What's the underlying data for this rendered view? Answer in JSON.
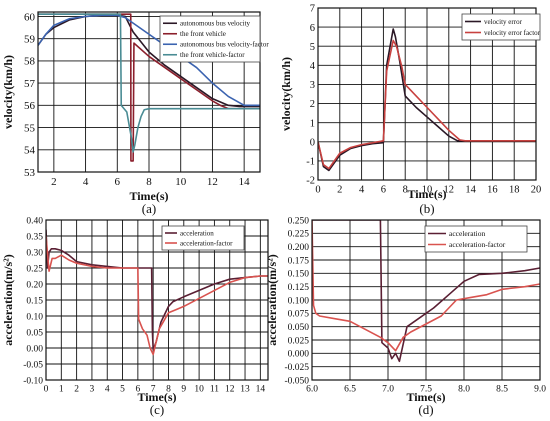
{
  "chart_data": [
    {
      "panel_label": "(a)",
      "type": "line",
      "xlabel": "Time(s)",
      "ylabel": "velocity(km/h)",
      "xlim": [
        1,
        15
      ],
      "ylim": [
        53,
        60.2
      ],
      "xticks": [
        2,
        4,
        6,
        8,
        10,
        12,
        14
      ],
      "xtick_labels": [
        "2",
        "4",
        "6",
        "8",
        "10",
        "12",
        "14"
      ],
      "yticks": [
        53,
        54,
        55,
        56,
        57,
        58,
        59,
        60
      ],
      "ytick_labels": [
        "53",
        "54",
        "55",
        "56",
        "57",
        "58",
        "59",
        "60"
      ],
      "grid": true,
      "legend": "top-right",
      "series": [
        {
          "name": "autonomous bus velocity",
          "color": "#2b1826",
          "x": [
            1,
            1.5,
            2,
            3,
            4,
            5,
            6,
            6.5,
            7,
            8,
            9,
            10,
            11,
            12,
            13,
            13.7,
            14.2,
            15
          ],
          "y": [
            58.7,
            59.2,
            59.5,
            59.85,
            60.0,
            60.05,
            60.05,
            60.0,
            59.3,
            58.4,
            57.8,
            57.3,
            56.8,
            56.3,
            56.0,
            55.95,
            55.95,
            55.95
          ]
        },
        {
          "name": "the front vehicle",
          "color": "#8b1f2c",
          "x": [
            1,
            6.85,
            6.86,
            7.0,
            7.05,
            8.0,
            9,
            10,
            11,
            12,
            12.5,
            13.0,
            13.5,
            14,
            15
          ],
          "y": [
            60.1,
            60.1,
            53.5,
            53.5,
            58.8,
            58.2,
            57.7,
            57.2,
            56.7,
            56.2,
            56.0,
            55.85,
            55.85,
            55.85,
            55.85
          ]
        },
        {
          "name": "autonomous bus velocity-factor",
          "color": "#3b63b0",
          "x": [
            1,
            1.5,
            2,
            3,
            4,
            5,
            6,
            6.5,
            7,
            8,
            9,
            10,
            11,
            12,
            13,
            14,
            15
          ],
          "y": [
            58.7,
            59.2,
            59.6,
            59.9,
            60.0,
            60.05,
            60.05,
            59.95,
            59.7,
            59.2,
            58.7,
            58.2,
            57.7,
            57.0,
            56.4,
            56.0,
            56.0
          ]
        },
        {
          "name": "the front vehicle-factor",
          "color": "#4a8c94",
          "x": [
            1,
            6.2,
            6.25,
            6.6,
            6.9,
            7.0,
            7.1,
            7.3,
            7.5,
            7.7,
            8.0,
            9,
            10,
            12,
            15
          ],
          "y": [
            60.1,
            60.1,
            56.0,
            55.7,
            54.5,
            53.9,
            54.2,
            55.0,
            55.5,
            55.8,
            55.85,
            55.85,
            55.85,
            55.85,
            55.85
          ]
        }
      ]
    },
    {
      "panel_label": "(b)",
      "type": "line",
      "xlabel": "Time(s)",
      "ylabel": "velocity(km/h)",
      "xlim": [
        0,
        20
      ],
      "ylim": [
        -2,
        7
      ],
      "xticks": [
        0,
        2,
        4,
        6,
        8,
        10,
        12,
        14,
        16,
        18,
        20
      ],
      "xtick_labels": [
        "0",
        "2",
        "4",
        "6",
        "8",
        "10",
        "12",
        "14",
        "16",
        "18",
        "20"
      ],
      "yticks": [
        -2,
        -1,
        0,
        1,
        2,
        3,
        4,
        5,
        6,
        7
      ],
      "ytick_labels": [
        "-2",
        "-1",
        "0",
        "1",
        "2",
        "3",
        "4",
        "5",
        "6",
        "7"
      ],
      "grid": true,
      "legend": "top-right",
      "series": [
        {
          "name": "velocity error",
          "color": "#2b1826",
          "x": [
            0,
            0.5,
            1,
            1.5,
            2,
            3,
            4,
            5,
            6,
            6.3,
            6.9,
            7.1,
            7.5,
            8,
            9,
            10,
            11,
            12,
            12.8,
            13.5,
            15,
            20
          ],
          "y": [
            0,
            -1.3,
            -1.5,
            -1.1,
            -0.7,
            -0.35,
            -0.2,
            -0.1,
            -0.05,
            4.0,
            5.9,
            5.5,
            4.2,
            2.4,
            1.8,
            1.3,
            0.8,
            0.3,
            0.05,
            0.05,
            0.05,
            0.05
          ]
        },
        {
          "name": "velocity error factor",
          "color": "#c8413f",
          "x": [
            0,
            0.5,
            1,
            1.5,
            2,
            3,
            4,
            5,
            6,
            6.3,
            6.9,
            7.2,
            7.7,
            8,
            9,
            10,
            11,
            12,
            13,
            13.5,
            15,
            20
          ],
          "y": [
            0,
            -1.2,
            -1.4,
            -1.0,
            -0.6,
            -0.3,
            -0.15,
            -0.05,
            0.05,
            3.7,
            5.3,
            5.0,
            3.9,
            3.0,
            2.4,
            1.8,
            1.2,
            0.6,
            0.1,
            0.05,
            0.05,
            0.05
          ]
        }
      ]
    },
    {
      "panel_label": "(c)",
      "type": "line",
      "xlabel": "Time(s)",
      "ylabel": "acceleration(m/s²)",
      "xlim": [
        0,
        14.5
      ],
      "ylim": [
        -0.1,
        0.4
      ],
      "xticks": [
        0,
        1,
        2,
        3,
        4,
        5,
        6,
        7,
        8,
        9,
        10,
        11,
        12,
        13,
        14
      ],
      "xtick_labels": [
        "0",
        "1",
        "2",
        "3",
        "4",
        "5",
        "6",
        "7",
        "8",
        "9",
        "10",
        "11",
        "12",
        "13",
        "14"
      ],
      "yticks": [
        -0.1,
        -0.05,
        0.0,
        0.05,
        0.1,
        0.15,
        0.2,
        0.25,
        0.3,
        0.35,
        0.4
      ],
      "ytick_labels": [
        "-0.10",
        "-0.05",
        "0.00",
        "0.05",
        "0.10",
        "0.15",
        "0.20",
        "0.25",
        "0.30",
        "0.35",
        "0.40"
      ],
      "grid": true,
      "legend": "top-right",
      "series": [
        {
          "name": "acceleration",
          "color": "#5a1f33",
          "x": [
            0,
            0.1,
            0.2,
            0.35,
            0.6,
            1,
            1.5,
            2,
            3,
            4,
            5,
            6,
            6.9,
            6.95,
            7.0,
            7.2,
            7.5,
            8,
            8.3,
            9,
            10,
            11,
            12,
            13,
            14,
            14.5
          ],
          "y": [
            0.37,
            0.25,
            0.3,
            0.31,
            0.31,
            0.305,
            0.29,
            0.27,
            0.26,
            0.255,
            0.25,
            0.25,
            0.25,
            0.05,
            -0.005,
            0.02,
            0.08,
            0.13,
            0.145,
            0.16,
            0.18,
            0.2,
            0.215,
            0.22,
            0.225,
            0.225
          ]
        },
        {
          "name": "acceleration-factor",
          "color": "#d9534f",
          "x": [
            0,
            0.2,
            0.4,
            0.6,
            1,
            1.5,
            2,
            3,
            4,
            5,
            6,
            6.05,
            6.3,
            6.6,
            6.8,
            7.0,
            7.4,
            8,
            8.5,
            9,
            10,
            11,
            12,
            13,
            14,
            14.5
          ],
          "y": [
            0.35,
            0.24,
            0.28,
            0.28,
            0.29,
            0.275,
            0.265,
            0.255,
            0.25,
            0.25,
            0.25,
            0.09,
            0.06,
            0.04,
            0.0,
            -0.02,
            0.06,
            0.11,
            0.12,
            0.13,
            0.155,
            0.18,
            0.205,
            0.22,
            0.225,
            0.225
          ]
        }
      ]
    },
    {
      "panel_label": "(d)",
      "type": "line",
      "xlabel": "Time(s)",
      "ylabel": "acceleration(m/s²)",
      "xlim": [
        6.0,
        9.0
      ],
      "ylim": [
        -0.05,
        0.25
      ],
      "xticks": [
        6.0,
        6.5,
        7.0,
        7.5,
        8.0,
        8.5,
        9.0
      ],
      "xtick_labels": [
        "6.0",
        "6.5",
        "7.0",
        "7.5",
        "8.0",
        "8.5",
        "9.0"
      ],
      "yticks": [
        -0.05,
        -0.025,
        0.0,
        0.025,
        0.05,
        0.075,
        0.1,
        0.125,
        0.15,
        0.175,
        0.2,
        0.225,
        0.25
      ],
      "ytick_labels": [
        "-0.050",
        "-0.025",
        "0.000",
        "0.025",
        "0.050",
        "0.075",
        "0.100",
        "0.125",
        "0.150",
        "0.175",
        "0.200",
        "0.225",
        "0.250"
      ],
      "grid": true,
      "legend": "top-right",
      "series": [
        {
          "name": "acceleration",
          "color": "#5a1f33",
          "x": [
            6.0,
            6.9,
            6.92,
            7.0,
            7.05,
            7.1,
            7.15,
            7.25,
            7.4,
            7.6,
            7.8,
            8.0,
            8.2,
            8.5,
            8.8,
            9.0
          ],
          "y": [
            0.25,
            0.25,
            0.02,
            0.01,
            -0.01,
            0.0,
            -0.015,
            0.05,
            0.065,
            0.085,
            0.11,
            0.135,
            0.148,
            0.15,
            0.155,
            0.16
          ]
        },
        {
          "name": "acceleration-factor",
          "color": "#d9534f",
          "x": [
            6.0,
            6.02,
            6.05,
            6.1,
            6.3,
            6.5,
            6.7,
            6.9,
            7.0,
            7.1,
            7.2,
            7.3,
            7.5,
            7.7,
            7.9,
            8.1,
            8.3,
            8.5,
            8.8,
            9.0
          ],
          "y": [
            0.25,
            0.09,
            0.075,
            0.07,
            0.065,
            0.06,
            0.045,
            0.03,
            0.02,
            0.005,
            0.03,
            0.04,
            0.055,
            0.07,
            0.1,
            0.105,
            0.11,
            0.12,
            0.125,
            0.13
          ]
        }
      ]
    }
  ]
}
